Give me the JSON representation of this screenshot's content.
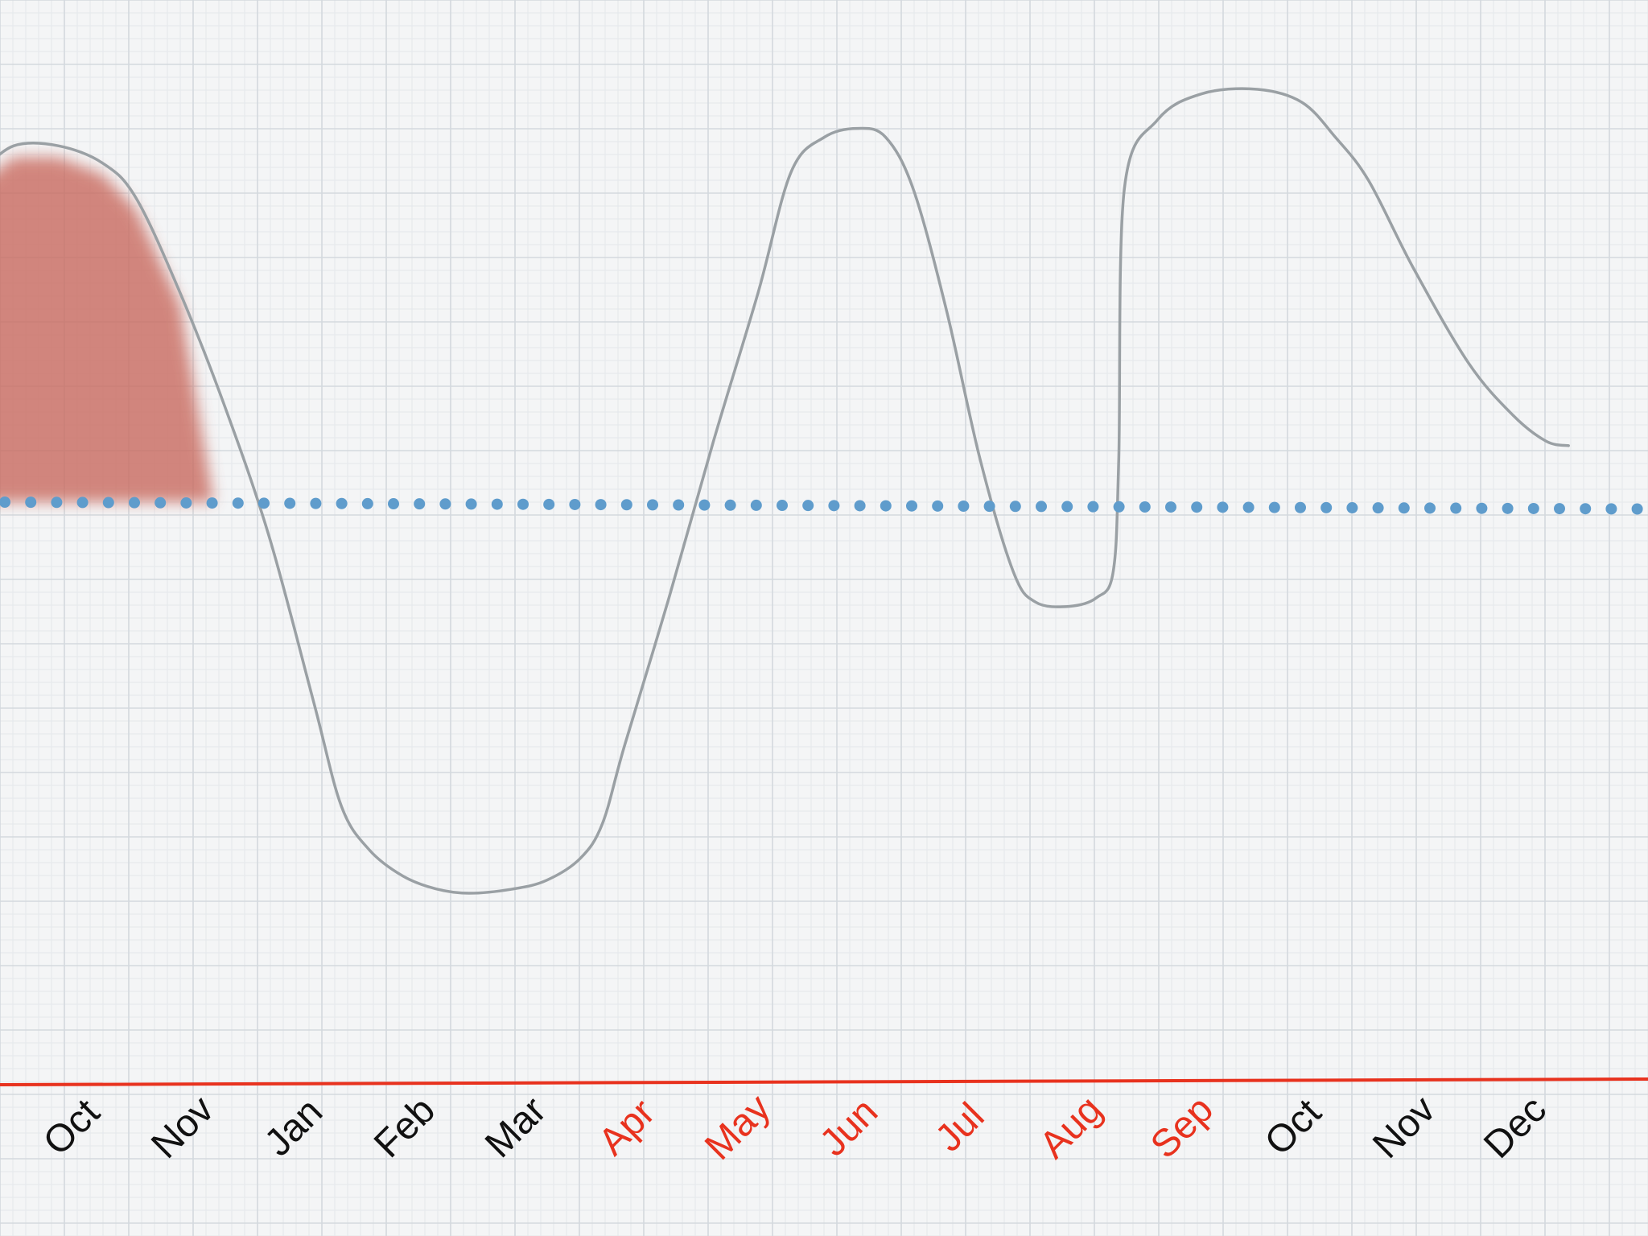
{
  "chart_data": {
    "type": "line",
    "title": "",
    "xlabel": "",
    "ylabel": "",
    "grid": true,
    "categories": [
      "Oct",
      "Nov",
      "Jan",
      "Feb",
      "Mar",
      "Apr",
      "May",
      "Jun",
      "Jul",
      "Aug",
      "Sep",
      "Oct",
      "Nov",
      "Dec"
    ],
    "category_colors": [
      "#111111",
      "#111111",
      "#111111",
      "#111111",
      "#111111",
      "#e8321e",
      "#e8321e",
      "#e8321e",
      "#e8321e",
      "#e8321e",
      "#e8321e",
      "#111111",
      "#111111",
      "#111111"
    ],
    "ylim": [
      -5,
      5
    ],
    "reference_line": {
      "y": 0,
      "style": "dotted",
      "color": "#5f9ccc"
    },
    "highlight_area": {
      "x_from": -0.9,
      "x_to": 1.2,
      "y_from": 0,
      "color": "#c96a5e"
    },
    "series": [
      {
        "color": "#9aa0a4",
        "points": [
          [
            -0.9,
            3.8
          ],
          [
            -0.6,
            4.1
          ],
          [
            -0.2,
            4.1
          ],
          [
            0.2,
            3.9
          ],
          [
            0.5,
            3.5
          ],
          [
            0.9,
            2.4
          ],
          [
            1.3,
            1.1
          ],
          [
            1.7,
            -0.4
          ],
          [
            2.1,
            -2.3
          ],
          [
            2.35,
            -3.5
          ],
          [
            2.6,
            -4.0
          ],
          [
            2.9,
            -4.3
          ],
          [
            3.2,
            -4.45
          ],
          [
            3.5,
            -4.5
          ],
          [
            3.9,
            -4.45
          ],
          [
            4.2,
            -4.35
          ],
          [
            4.5,
            -4.1
          ],
          [
            4.7,
            -3.7
          ],
          [
            4.9,
            -2.8
          ],
          [
            5.3,
            -1.1
          ],
          [
            5.7,
            0.7
          ],
          [
            6.1,
            2.4
          ],
          [
            6.4,
            3.8
          ],
          [
            6.7,
            4.2
          ],
          [
            7.0,
            4.3
          ],
          [
            7.25,
            4.2
          ],
          [
            7.5,
            3.6
          ],
          [
            7.8,
            2.2
          ],
          [
            8.1,
            0.5
          ],
          [
            8.4,
            -0.8
          ],
          [
            8.6,
            -1.15
          ],
          [
            8.9,
            -1.2
          ],
          [
            9.15,
            -1.1
          ],
          [
            9.3,
            -0.8
          ],
          [
            9.35,
            0.5
          ],
          [
            9.4,
            3.6
          ],
          [
            9.7,
            4.4
          ],
          [
            10.1,
            4.7
          ],
          [
            10.6,
            4.75
          ],
          [
            11.0,
            4.6
          ],
          [
            11.3,
            4.2
          ],
          [
            11.6,
            3.7
          ],
          [
            12.0,
            2.7
          ],
          [
            12.5,
            1.6
          ],
          [
            12.9,
            1.0
          ],
          [
            13.2,
            0.7
          ],
          [
            13.4,
            0.65
          ]
        ]
      }
    ]
  }
}
